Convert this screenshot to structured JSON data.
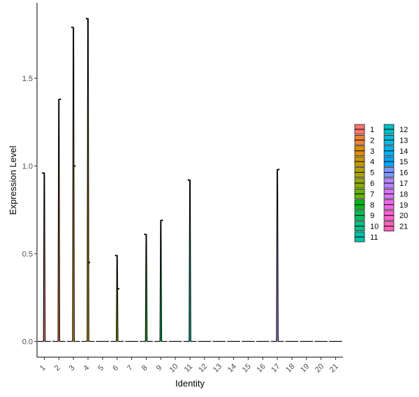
{
  "chart_data": {
    "type": "violin",
    "xlabel": "Identity",
    "ylabel": "Expression Level",
    "categories": [
      "1",
      "2",
      "3",
      "4",
      "5",
      "6",
      "7",
      "8",
      "9",
      "10",
      "11",
      "12",
      "13",
      "14",
      "15",
      "16",
      "17",
      "18",
      "19",
      "20",
      "21"
    ],
    "max_values": [
      0.96,
      1.38,
      1.79,
      1.84,
      0,
      0.49,
      0,
      0.61,
      0.69,
      0,
      0.92,
      0,
      0,
      0,
      0,
      0,
      0.98,
      0,
      0,
      0,
      0
    ],
    "points": [
      {
        "x": "1",
        "y": 0.96
      },
      {
        "x": "2",
        "y": 1.38
      },
      {
        "x": "3",
        "y": 1.79
      },
      {
        "x": "3",
        "y": 1.0
      },
      {
        "x": "4",
        "y": 1.84
      },
      {
        "x": "4",
        "y": 0.45
      },
      {
        "x": "6",
        "y": 0.49
      },
      {
        "x": "6",
        "y": 0.3
      },
      {
        "x": "8",
        "y": 0.61
      },
      {
        "x": "9",
        "y": 0.69
      },
      {
        "x": "11",
        "y": 0.92
      },
      {
        "x": "17",
        "y": 0.98
      }
    ],
    "yticks": [
      0.0,
      0.5,
      1.0,
      1.5
    ],
    "ytick_labels": [
      "0.0",
      "0.5",
      "1.0",
      "1.5"
    ],
    "ylim": [
      -0.09,
      1.93
    ],
    "grid": false,
    "legend_position": "right",
    "legend": [
      {
        "label": "1",
        "color": "#F8766D"
      },
      {
        "label": "2",
        "color": "#EC8239"
      },
      {
        "label": "3",
        "color": "#DB8E00"
      },
      {
        "label": "4",
        "color": "#C79800"
      },
      {
        "label": "5",
        "color": "#AEA200"
      },
      {
        "label": "6",
        "color": "#8FAA00"
      },
      {
        "label": "7",
        "color": "#64B200"
      },
      {
        "label": "8",
        "color": "#00B81B"
      },
      {
        "label": "9",
        "color": "#00BD5C"
      },
      {
        "label": "10",
        "color": "#00C085"
      },
      {
        "label": "11",
        "color": "#00C1A7"
      },
      {
        "label": "12",
        "color": "#00BFC4"
      },
      {
        "label": "13",
        "color": "#00BADE"
      },
      {
        "label": "14",
        "color": "#00B2F3"
      },
      {
        "label": "15",
        "color": "#00A6FF"
      },
      {
        "label": "16",
        "color": "#7C96FF"
      },
      {
        "label": "17",
        "color": "#B385FF"
      },
      {
        "label": "18",
        "color": "#D874FD"
      },
      {
        "label": "19",
        "color": "#EF67EB"
      },
      {
        "label": "20",
        "color": "#FD61D3"
      },
      {
        "label": "21",
        "color": "#FF63B6"
      }
    ]
  }
}
